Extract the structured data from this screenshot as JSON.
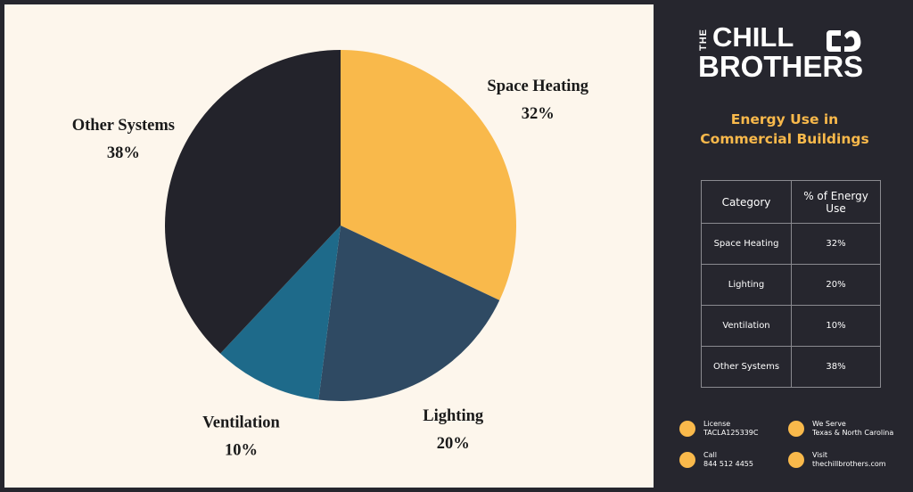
{
  "chart_data": {
    "type": "pie",
    "categories": [
      "Space Heating",
      "Lighting",
      "Ventilation",
      "Other Systems"
    ],
    "values": [
      32,
      20,
      10,
      38
    ],
    "value_labels": [
      "32%",
      "20%",
      "10%",
      "38%"
    ],
    "colors": [
      "#f9b94b",
      "#2f4a63",
      "#1e6a8a",
      "#23232b"
    ]
  },
  "brand": {
    "small": "THE",
    "line1": "CHILL",
    "line2": "BROTHERS"
  },
  "sidebar_title": "Energy Use in Commercial Buildings",
  "table": {
    "header": [
      "Category",
      "% of Energy Use"
    ],
    "rows": [
      [
        "Space Heating",
        "32%"
      ],
      [
        "Lighting",
        "20%"
      ],
      [
        "Ventilation",
        "10%"
      ],
      [
        "Other Systems",
        "38%"
      ]
    ]
  },
  "contacts": [
    {
      "label": "License",
      "value": "TACLA125339C"
    },
    {
      "label": "We Serve",
      "value": "Texas & North Carolina"
    },
    {
      "label": "Call",
      "value": "844 512 4455"
    },
    {
      "label": "Visit",
      "value": "thechillbrothers.com"
    }
  ]
}
